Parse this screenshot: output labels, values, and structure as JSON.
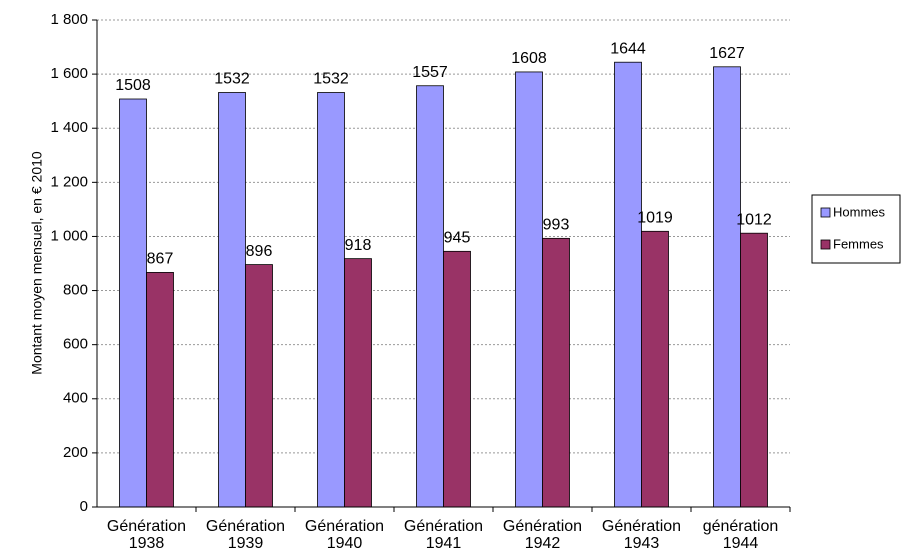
{
  "chart_data": {
    "type": "bar",
    "y_label": "Montant moyen mensuel, en € 2010",
    "categories": [
      "Génération 1938",
      "Génération 1939",
      "Génération 1940",
      "Génération 1941",
      "Génération 1942",
      "Génération 1943",
      "génération 1944"
    ],
    "series": [
      {
        "name": "Hommes",
        "color": "#9999ff",
        "values": [
          1508,
          1532,
          1532,
          1557,
          1608,
          1644,
          1627
        ]
      },
      {
        "name": "Femmes",
        "color": "#993366",
        "values": [
          867,
          896,
          918,
          945,
          993,
          1019,
          1012
        ]
      }
    ],
    "ylim": [
      0,
      1800
    ],
    "yticks": [
      0,
      200,
      400,
      600,
      800,
      {
        "value": 1000,
        "label": "1 000"
      },
      {
        "value": 1200,
        "label": "1 200"
      },
      {
        "value": 1400,
        "label": "1 400"
      },
      {
        "value": 1600,
        "label": "1 600"
      },
      {
        "value": 1800,
        "label": "1 800"
      }
    ],
    "grid": true,
    "legend": "right"
  }
}
